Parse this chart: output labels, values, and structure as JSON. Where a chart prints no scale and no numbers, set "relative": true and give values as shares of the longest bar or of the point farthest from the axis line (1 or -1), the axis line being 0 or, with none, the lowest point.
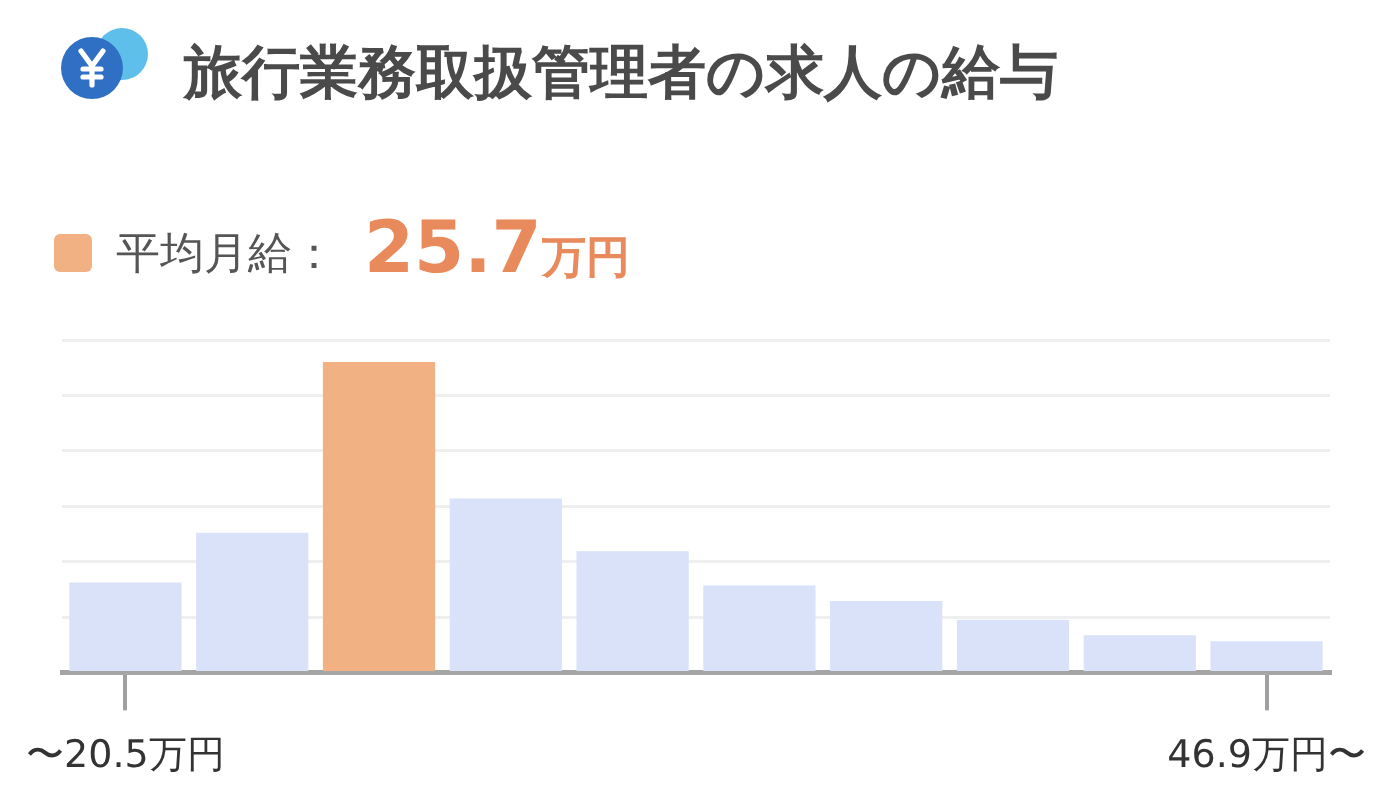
{
  "chart_data": {
    "type": "bar",
    "title": "旅行業務取扱管理者の求人の給与",
    "categories": [
      "〜20.5万円",
      null,
      null,
      null,
      null,
      null,
      null,
      null,
      null,
      "46.9万円〜"
    ],
    "series": [
      {
        "color": "#d9e2f9",
        "values": [
          0.29,
          0.45,
          null,
          0.56,
          0.39,
          0.28,
          0.23,
          0.17,
          0.12,
          0.1
        ]
      },
      {
        "name": "平均月給：",
        "color": "#f2b182",
        "values": [
          null,
          null,
          1,
          null,
          null,
          null,
          null,
          null,
          null,
          null
        ]
      }
    ],
    "relative": true,
    "grid": "y",
    "legend": "top left",
    "annotations": [
      "25.7万円"
    ]
  }
}
